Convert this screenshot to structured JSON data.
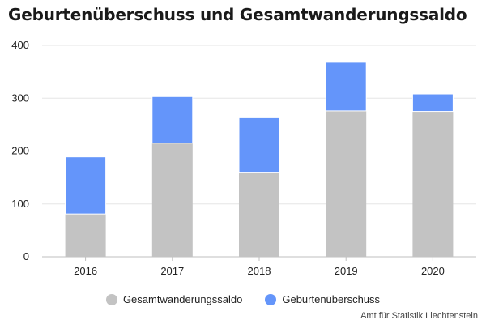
{
  "chart_data": {
    "type": "bar",
    "stacked": true,
    "title": "Geburtenüberschuss und Gesamtwanderungssaldo",
    "categories": [
      "2016",
      "2017",
      "2018",
      "2019",
      "2020"
    ],
    "series": [
      {
        "name": "Gesamtwanderungssaldo",
        "values": [
          81,
          215,
          160,
          276,
          275
        ],
        "color": "#c3c3c3"
      },
      {
        "name": "Geburtenüberschuss",
        "values": [
          108,
          88,
          103,
          92,
          33
        ],
        "color": "#6495fa"
      }
    ],
    "ylim": [
      0,
      400
    ],
    "yticks": [
      "0",
      "100",
      "200",
      "300",
      "400"
    ],
    "grid": true,
    "legend": "bottom"
  },
  "credit": "Amt für Statistik Liechtenstein"
}
